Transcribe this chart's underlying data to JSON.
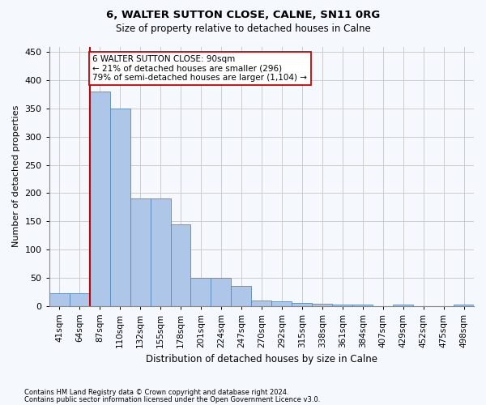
{
  "title1": "6, WALTER SUTTON CLOSE, CALNE, SN11 0RG",
  "title2": "Size of property relative to detached houses in Calne",
  "xlabel": "Distribution of detached houses by size in Calne",
  "ylabel": "Number of detached properties",
  "bar_labels": [
    "41sqm",
    "64sqm",
    "87sqm",
    "110sqm",
    "132sqm",
    "155sqm",
    "178sqm",
    "201sqm",
    "224sqm",
    "247sqm",
    "270sqm",
    "292sqm",
    "315sqm",
    "338sqm",
    "361sqm",
    "384sqm",
    "407sqm",
    "429sqm",
    "452sqm",
    "475sqm",
    "498sqm"
  ],
  "bar_values": [
    22,
    22,
    380,
    350,
    190,
    190,
    145,
    50,
    50,
    35,
    10,
    8,
    5,
    3,
    2,
    2,
    0,
    2,
    0,
    0,
    2
  ],
  "bar_color": "#aec6e8",
  "bar_edge_color": "#5588bb",
  "vline_color": "#cc0000",
  "vline_idx": 2,
  "ylim": [
    0,
    460
  ],
  "yticks": [
    0,
    50,
    100,
    150,
    200,
    250,
    300,
    350,
    400,
    450
  ],
  "annotation_text": "6 WALTER SUTTON CLOSE: 90sqm\n← 21% of detached houses are smaller (296)\n79% of semi-detached houses are larger (1,104) →",
  "annotation_box_facecolor": "#ffffff",
  "annotation_box_edgecolor": "#cc0000",
  "footnote1": "Contains HM Land Registry data © Crown copyright and database right 2024.",
  "footnote2": "Contains public sector information licensed under the Open Government Licence v3.0.",
  "background_color": "#f5f8fd",
  "grid_color": "#cccccc"
}
